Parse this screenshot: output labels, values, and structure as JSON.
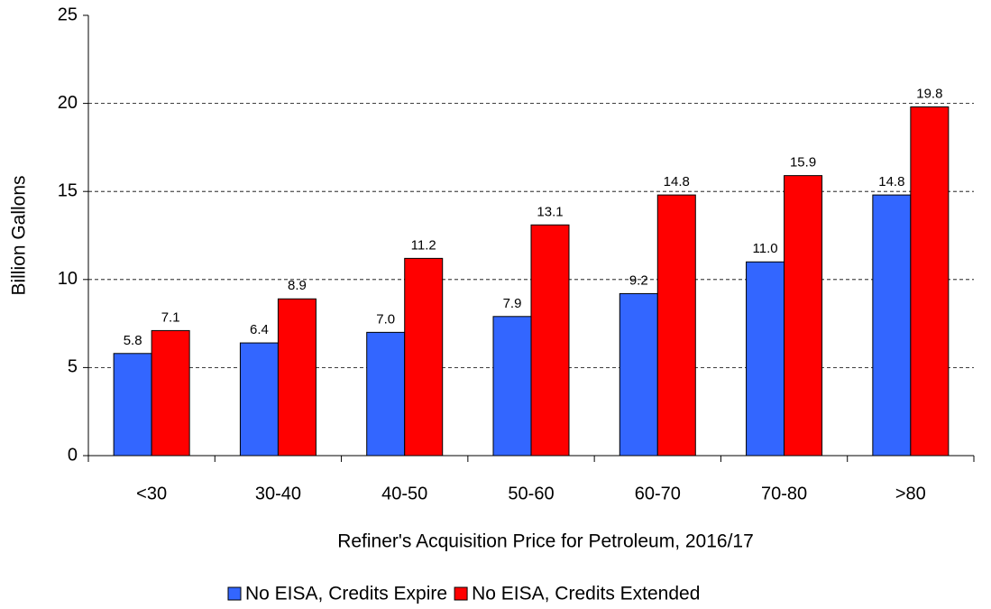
{
  "chart_data": {
    "type": "bar",
    "x_label": "Refiner's Acquisition Price for Petroleum, 2016/17",
    "y_label": "Billion Gallons",
    "categories": [
      "<30",
      "30-40",
      "40-50",
      "50-60",
      "60-70",
      "70-80",
      ">80"
    ],
    "series": [
      {
        "name": "No EISA, Credits Expire",
        "color": "#3366ff",
        "values": [
          5.8,
          6.4,
          7.0,
          7.9,
          9.2,
          11.0,
          14.8
        ],
        "value_labels": [
          "5.8",
          "6.4",
          "7.0",
          "7.9",
          "9.2",
          "11.0",
          "14.8"
        ]
      },
      {
        "name": "No EISA, Credits Extended",
        "color": "#ff0000",
        "values": [
          7.1,
          8.9,
          11.2,
          13.1,
          14.8,
          15.9,
          19.8
        ],
        "value_labels": [
          "7.1",
          "8.9",
          "11.2",
          "13.1",
          "14.8",
          "15.9",
          "19.8"
        ]
      }
    ],
    "ylim": [
      0,
      25
    ],
    "yticks": [
      0,
      5,
      10,
      15,
      20,
      25
    ],
    "grid": true,
    "legend": "bottom"
  }
}
